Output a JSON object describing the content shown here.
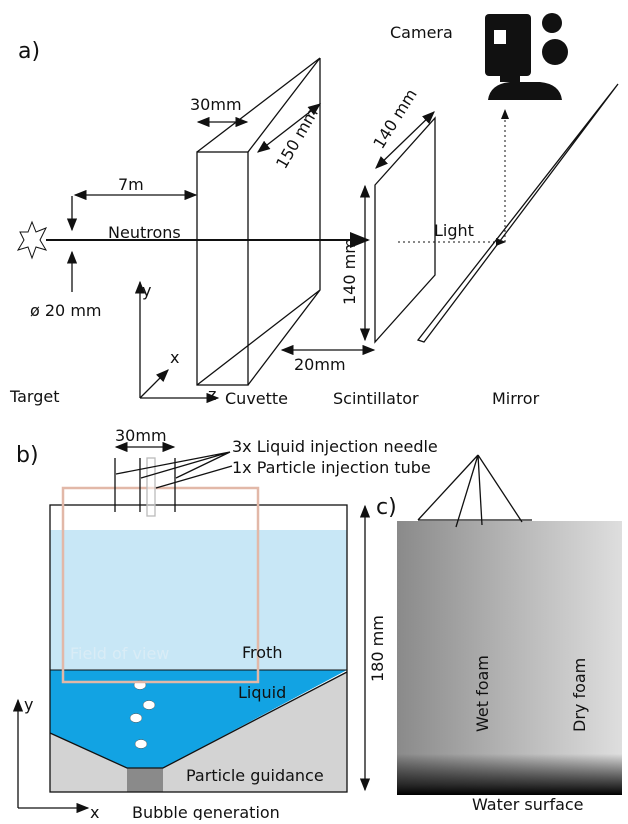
{
  "panel_a": {
    "label": "a)",
    "camera": "Camera",
    "cuvette_width": "30mm",
    "cuvette_depth": "150 mm",
    "scint_depth": "140 mm",
    "distance": "7m",
    "beam": "Neutrons",
    "light": "Light",
    "diameter": "ø 20 mm",
    "axis_y": "y",
    "axis_x": "x",
    "axis_z": "z",
    "scint_height": "140 mm",
    "gap": "20mm",
    "target": "Target",
    "cuvette": "Cuvette",
    "scintillator": "Scintillator",
    "mirror": "Mirror"
  },
  "panel_b": {
    "label": "b)",
    "needle_spacing": "30mm",
    "needles": "3x Liquid injection needle",
    "tube": "1x Particle injection tube",
    "field_of_view": "Field of view",
    "froth": "Froth",
    "liquid": "Liquid",
    "height": "180 mm",
    "guidance": "Particle guidance",
    "axis_y": "y",
    "axis_x": "x",
    "bubble_generation": "Bubble generation"
  },
  "panel_c": {
    "label": "c)",
    "wet_foam": "Wet foam",
    "dry_foam": "Dry foam",
    "water_surface": "Water surface"
  }
}
